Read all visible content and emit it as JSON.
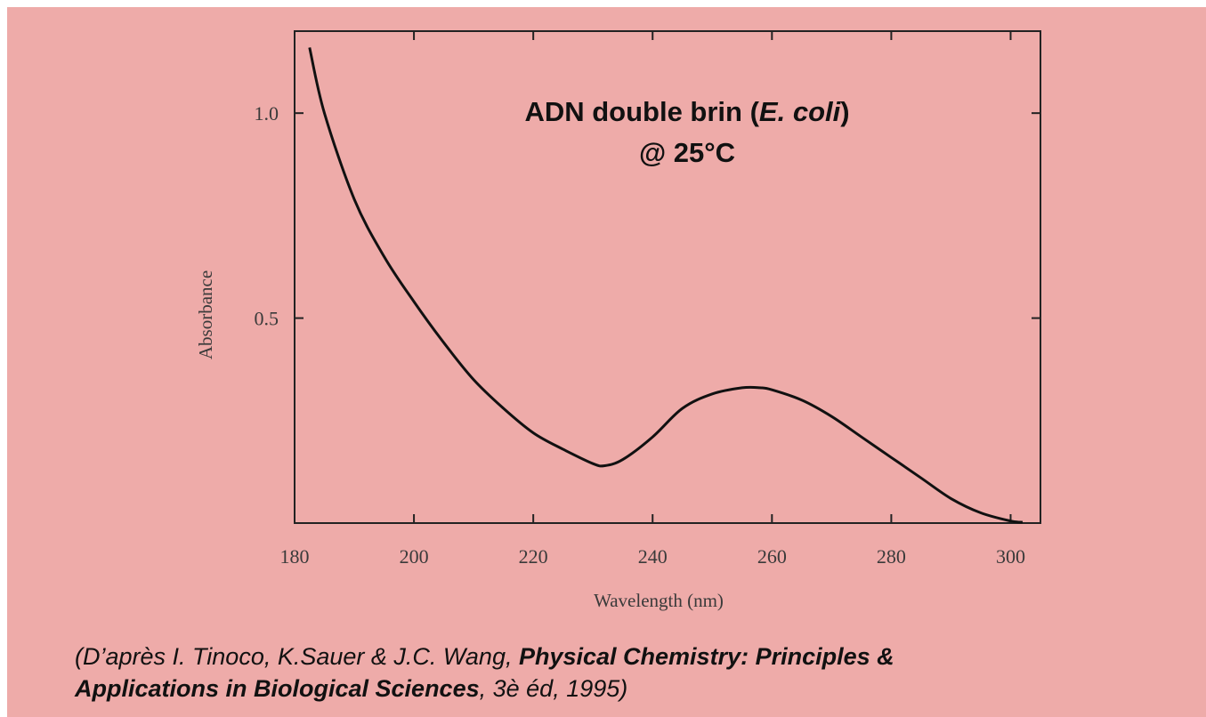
{
  "chart_data": {
    "type": "line",
    "xlabel": "Wavelength (nm)",
    "ylabel": "Absorbance",
    "xlim": [
      180,
      305
    ],
    "ylim": [
      0,
      1.2
    ],
    "x_ticks": [
      "180",
      "200",
      "220",
      "240",
      "260",
      "280",
      "300"
    ],
    "y_ticks": [
      "0.5",
      "1.0"
    ],
    "annotation": {
      "line1_prefix": "ADN double brin (",
      "line1_italic": "E. coli",
      "line1_suffix": ")",
      "line2": "@ 25°C"
    },
    "series": [
      {
        "x": [
          182.5,
          185,
          190,
          195,
          200,
          205,
          210,
          215,
          220,
          225,
          230,
          232,
          235,
          240,
          245,
          250,
          255,
          258,
          260,
          265,
          270,
          275,
          280,
          285,
          290,
          295,
          300,
          302
        ],
        "values": [
          1.16,
          1.0,
          0.79,
          0.65,
          0.54,
          0.44,
          0.35,
          0.28,
          0.22,
          0.18,
          0.145,
          0.14,
          0.155,
          0.21,
          0.28,
          0.315,
          0.33,
          0.33,
          0.325,
          0.3,
          0.26,
          0.21,
          0.16,
          0.11,
          0.06,
          0.025,
          0.005,
          0.002
        ]
      }
    ]
  },
  "citation": {
    "part1": "(D’après I. Tinoco, K.Sauer & J.C. Wang, ",
    "bold1": "Physical Chemistry: Principles &",
    "bold2": "Applications in Biological Sciences",
    "part2": ", 3è éd, 1995)"
  }
}
